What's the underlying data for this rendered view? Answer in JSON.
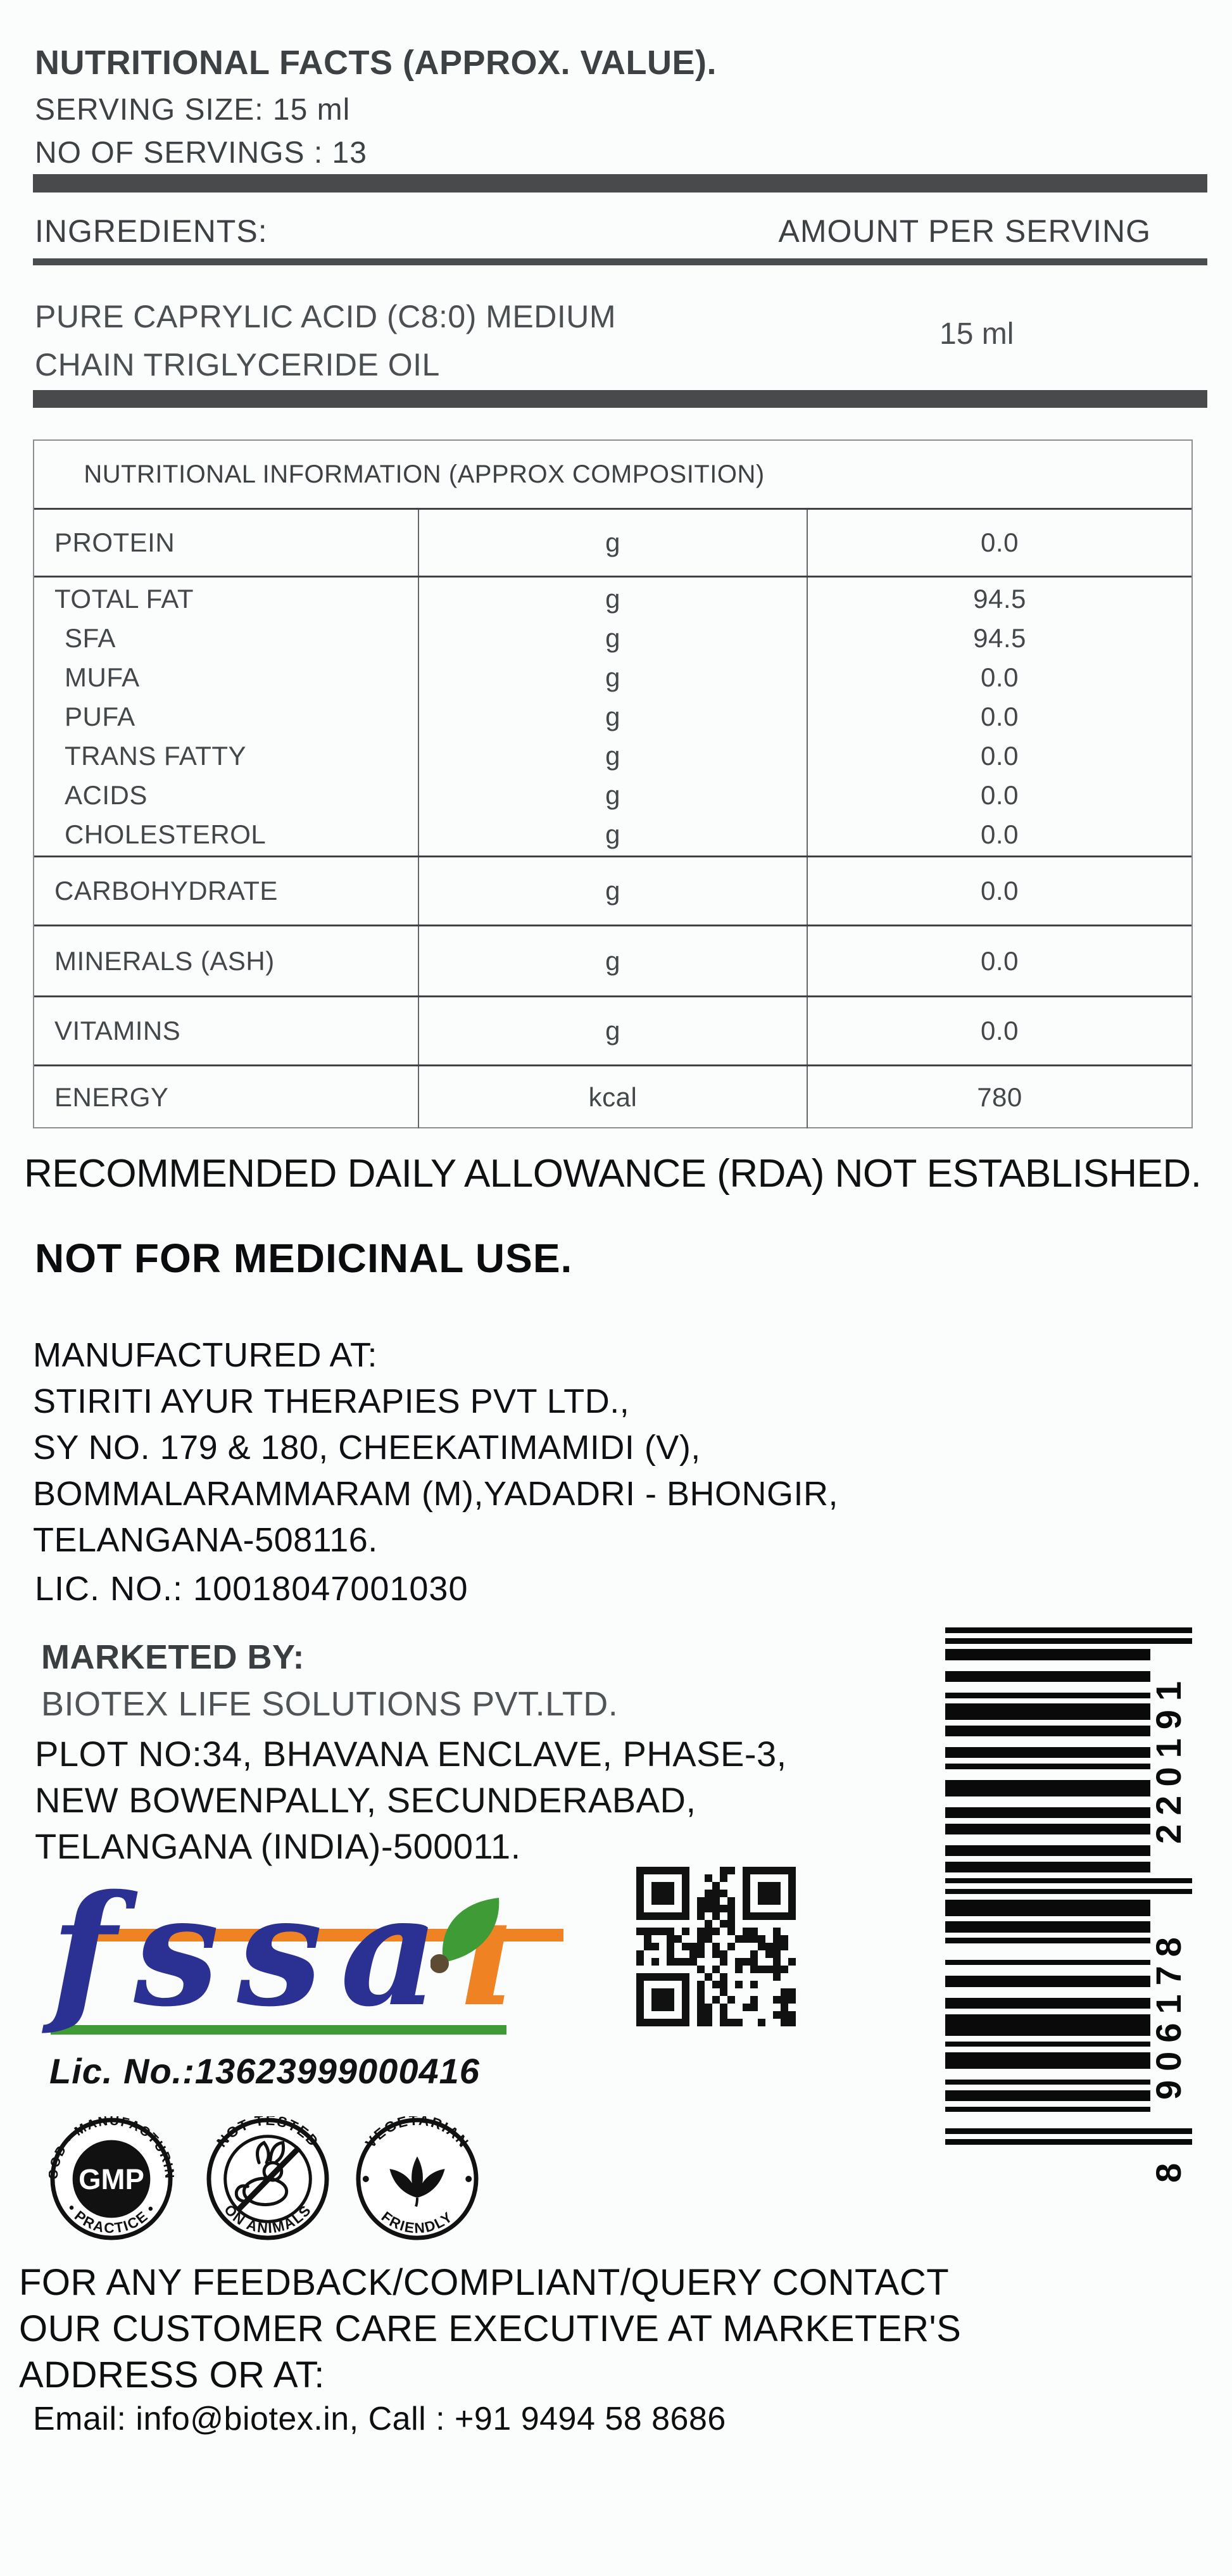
{
  "label": {
    "title": "NUTRITIONAL FACTS (APPROX. VALUE).",
    "serving_size": "SERVING SIZE: 15 ml",
    "servings": "NO OF SERVINGS : 13"
  },
  "ingredients": {
    "heading": "INGREDIENTS:",
    "amount_heading": "AMOUNT PER SERVING",
    "item_line1": "PURE CAPRYLIC ACID (C8:0) MEDIUM",
    "item_line2": "CHAIN TRIGLYCERIDE OIL",
    "item_amount": "15 ml"
  },
  "nutrition_table": {
    "title": "NUTRITIONAL INFORMATION (APPROX COMPOSITION)",
    "rows": [
      {
        "names": [
          "PROTEIN"
        ],
        "units": [
          "g"
        ],
        "values": [
          "0.0"
        ]
      },
      {
        "names": [
          "TOTAL FAT",
          "SFA",
          "MUFA",
          "PUFA",
          "TRANS FATTY",
          "ACIDS",
          "CHOLESTEROL"
        ],
        "units": [
          "g",
          "g",
          "g",
          "g",
          "g",
          "g",
          "g"
        ],
        "values": [
          "94.5",
          "94.5",
          "0.0",
          "0.0",
          "0.0",
          "0.0",
          "0.0"
        ]
      },
      {
        "names": [
          "CARBOHYDRATE"
        ],
        "units": [
          "g"
        ],
        "values": [
          "0.0"
        ]
      },
      {
        "names": [
          "MINERALS (ASH)"
        ],
        "units": [
          "g"
        ],
        "values": [
          "0.0"
        ]
      },
      {
        "names": [
          "VITAMINS"
        ],
        "units": [
          "g"
        ],
        "values": [
          "0.0"
        ]
      },
      {
        "names": [
          "ENERGY"
        ],
        "units": [
          "kcal"
        ],
        "values": [
          "780"
        ]
      }
    ]
  },
  "disclaimers": {
    "rda": "RECOMMENDED DAILY ALLOWANCE (RDA) NOT ESTABLISHED.",
    "medicinal": "NOT FOR MEDICINAL USE."
  },
  "manufacturer": {
    "heading": "MANUFACTURED AT:",
    "lines": [
      "STIRITI AYUR THERAPIES PVT LTD.,",
      "SY NO. 179 & 180, CHEEKATIMAMIDI (V),",
      "BOMMALARAMMARAM (M),YADADRI - BHONGIR,",
      "TELANGANA-508116."
    ],
    "license": "LIC. NO.: 10018047001030"
  },
  "marketer": {
    "heading": "MARKETED BY:",
    "name": "BIOTEX LIFE SOLUTIONS PVT.LTD.",
    "lines": [
      "PLOT NO:34, BHAVANA ENCLAVE, PHASE-3,",
      "NEW BOWENPALLY, SECUNDERABAD,",
      "TELANGANA (INDIA)-500011."
    ]
  },
  "fssai": {
    "text_blue": "fssa",
    "text_orange": "ı",
    "license": "Lic. No.:13623999000416",
    "colors": {
      "blue": "#2b3093",
      "orange": "#ef8222",
      "green": "#3f9b35",
      "brown": "#5e4b33"
    }
  },
  "barcode": {
    "digits": "8906178220191"
  },
  "badges": [
    {
      "top": "GOOD • MANUFACTURING",
      "bottom": "• PRACTICE •",
      "center": "GMP"
    },
    {
      "top": "NOT TESTED",
      "bottom": "ON ANIMALS",
      "icon": "rabbit-no-animal-testing-icon"
    },
    {
      "top": "VEGETARIAN",
      "bottom": "FRIENDLY",
      "icon": "leaves-icon"
    }
  ],
  "contact": {
    "lines": [
      "FOR ANY FEEDBACK/COMPLIANT/QUERY CONTACT",
      "OUR CUSTOMER CARE EXECUTIVE AT MARKETER'S",
      "ADDRESS OR AT:"
    ],
    "email_line": "Email: info@biotex.in, Call : +91 9494 58 8686"
  }
}
